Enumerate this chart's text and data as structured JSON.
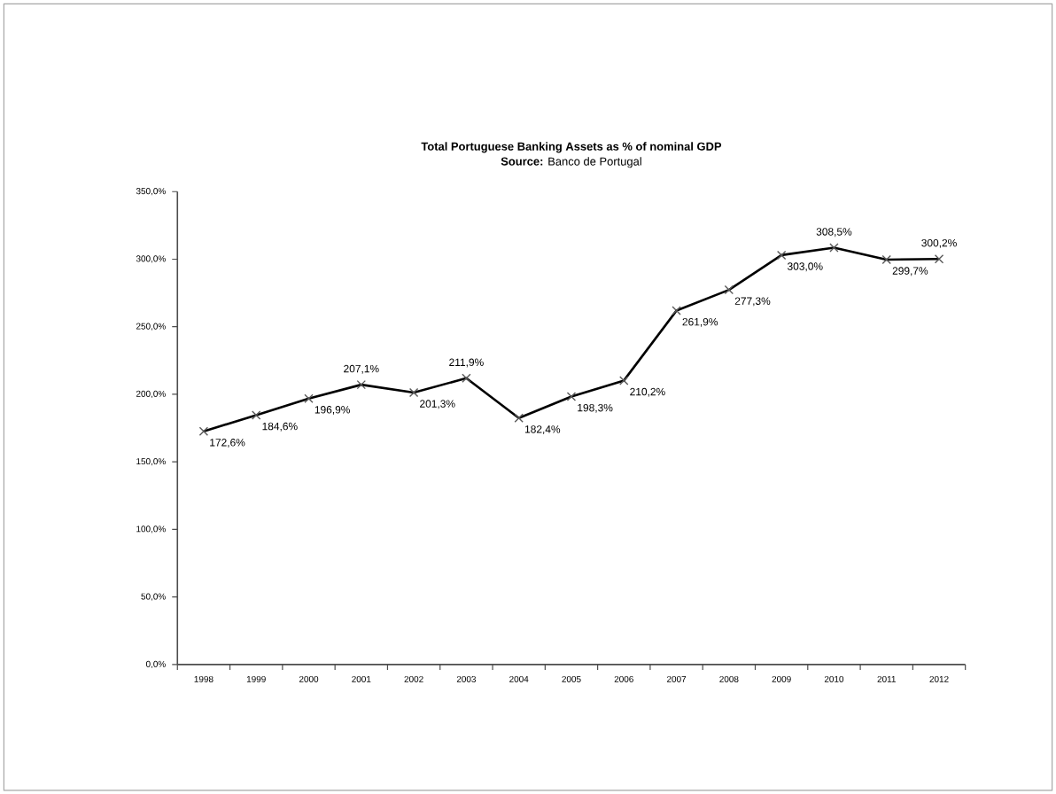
{
  "chart_data": {
    "type": "line",
    "title": "Total Portuguese Banking Assets as % of nominal GDP",
    "subtitle": "**Source:** Banco de Portugal",
    "categories": [
      "1998",
      "1999",
      "2000",
      "2001",
      "2002",
      "2003",
      "2004",
      "2005",
      "2006",
      "2007",
      "2008",
      "2009",
      "2010",
      "2011",
      "2012"
    ],
    "series": [
      {
        "color": "#000000",
        "values": [
          172.6,
          184.6,
          196.9,
          207.1,
          201.3,
          211.9,
          182.4,
          198.3,
          210.2,
          261.9,
          277.3,
          303.0,
          308.5,
          299.7,
          300.2
        ],
        "value_labels": [
          "172,6%",
          "184,6%",
          "196,9%",
          "207,1%",
          "201,3%",
          "211,9%",
          "182,4%",
          "198,3%",
          "210,2%",
          "261,9%",
          "277,3%",
          "303,0%",
          "308,5%",
          "299,7%",
          "300,2%"
        ]
      }
    ],
    "ylim": [
      0,
      350
    ],
    "yticks": [
      {
        "value": 0,
        "label": "0,0%"
      },
      {
        "value": 50,
        "label": "50,0%"
      },
      {
        "value": 100,
        "label": "100,0%"
      },
      {
        "value": 150,
        "label": "150,0%"
      },
      {
        "value": 200,
        "label": "200,0%"
      },
      {
        "value": 250,
        "label": "250,0%"
      },
      {
        "value": 300,
        "label": "300,0%"
      },
      {
        "value": 350,
        "label": "350,0%"
      }
    ],
    "marker": "cross",
    "line_style": "solid",
    "grid": false,
    "legend": false
  }
}
